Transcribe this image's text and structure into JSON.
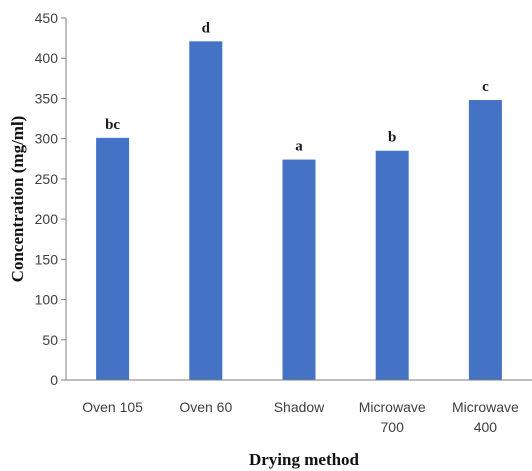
{
  "chart_data": {
    "type": "bar",
    "title": "",
    "xlabel": "Drying method",
    "ylabel": "Concentration (mg/ml)",
    "ylim": [
      0,
      450
    ],
    "yticks": [
      0,
      50,
      100,
      150,
      200,
      250,
      300,
      350,
      400,
      450
    ],
    "grid": false,
    "legend": "none",
    "bar_color": "#4472C4",
    "categories": [
      [
        "Oven 105"
      ],
      [
        "Oven 60"
      ],
      [
        "Shadow"
      ],
      [
        "Microwave",
        "700"
      ],
      [
        "Microwave",
        "400"
      ]
    ],
    "values": [
      301,
      421,
      274,
      285,
      348
    ],
    "significance_labels": [
      "bc",
      "d",
      "a",
      "b",
      "c"
    ]
  }
}
